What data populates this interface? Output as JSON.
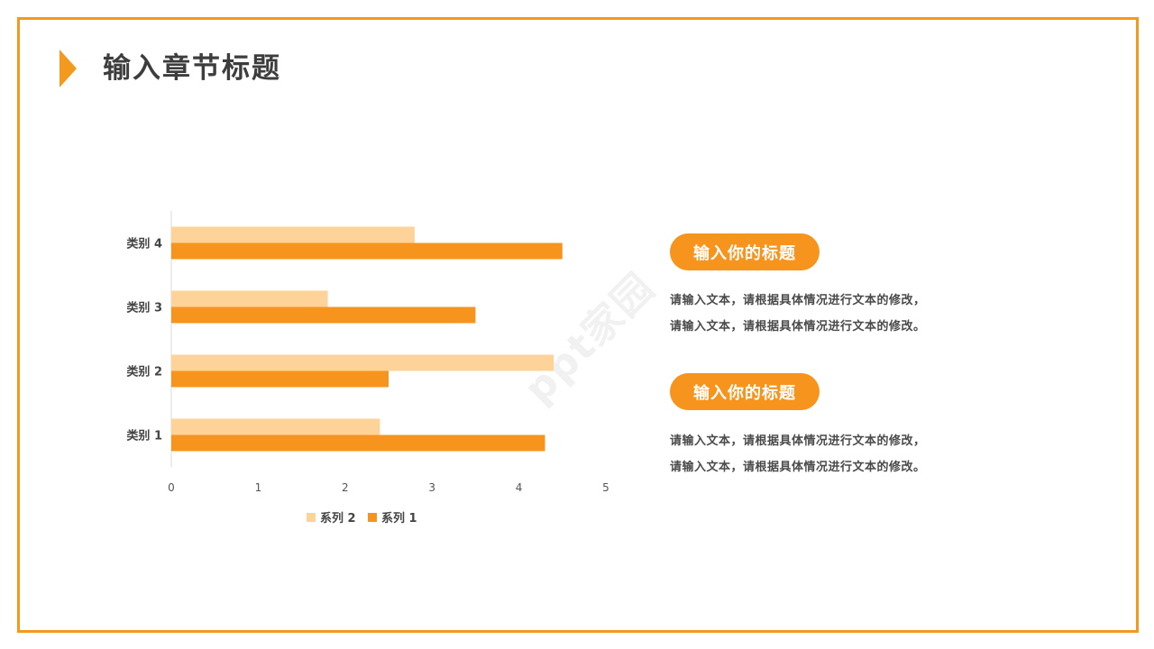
{
  "colors": {
    "accent": "#f39a1e",
    "series1": "#f7941d",
    "series2": "#fdd39a"
  },
  "header": {
    "title": "输入章节标题"
  },
  "watermark": "ppt家园",
  "chart_data": {
    "type": "bar",
    "orientation": "horizontal",
    "categories": [
      "类别 1",
      "类别 2",
      "类别 3",
      "类别 4"
    ],
    "series": [
      {
        "name": "系列 2",
        "values": [
          2.4,
          4.4,
          1.8,
          2.8
        ],
        "color": "#fdd39a"
      },
      {
        "name": "系列 1",
        "values": [
          4.3,
          2.5,
          3.5,
          4.5
        ],
        "color": "#f7941d"
      }
    ],
    "xlim": [
      0,
      5
    ],
    "x_ticks": [
      "0",
      "1",
      "2",
      "3",
      "4",
      "5"
    ],
    "legend_position": "bottom",
    "grid": false
  },
  "panels": [
    {
      "title": "输入你的标题",
      "lines": [
        "请输入文本，请根据具体情况进行文本的修改，",
        "请输入文本，请根据具体情况进行文本的修改。"
      ]
    },
    {
      "title": "输入你的标题",
      "lines": [
        "请输入文本，请根据具体情况进行文本的修改，",
        "请输入文本，请根据具体情况进行文本的修改。"
      ]
    }
  ]
}
